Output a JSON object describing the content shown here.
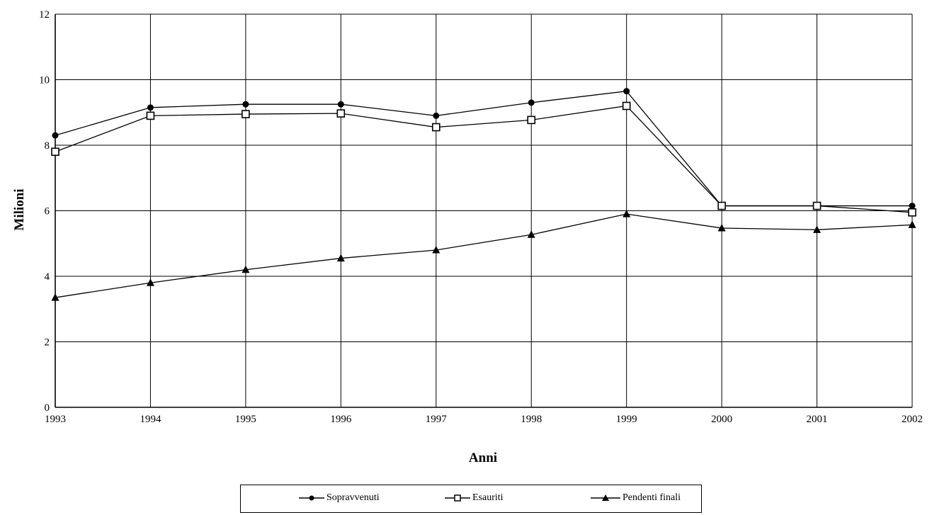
{
  "chart_data": {
    "type": "line",
    "title": "",
    "xlabel": "Anni",
    "ylabel": "Milioni",
    "x": [
      "1993",
      "1994",
      "1995",
      "1996",
      "1997",
      "1998",
      "1999",
      "2000",
      "2001",
      "2002"
    ],
    "ylim": [
      0,
      12
    ],
    "yticks": [
      "0",
      "2",
      "4",
      "6",
      "8",
      "10",
      "12"
    ],
    "grid": true,
    "legend_position": "bottom",
    "series": [
      {
        "name": "Sopravvenuti",
        "marker": "circle",
        "values": [
          8.3,
          9.15,
          9.25,
          9.25,
          8.9,
          9.3,
          9.65,
          6.15,
          6.15,
          6.15
        ]
      },
      {
        "name": "Esauriti",
        "marker": "square",
        "values": [
          7.8,
          8.9,
          8.95,
          8.97,
          8.55,
          8.77,
          9.2,
          6.15,
          6.15,
          5.95
        ]
      },
      {
        "name": "Pendenti finali",
        "marker": "triangle",
        "values": [
          3.35,
          3.8,
          4.2,
          4.55,
          4.8,
          5.27,
          5.9,
          5.47,
          5.42,
          5.57
        ]
      }
    ]
  }
}
